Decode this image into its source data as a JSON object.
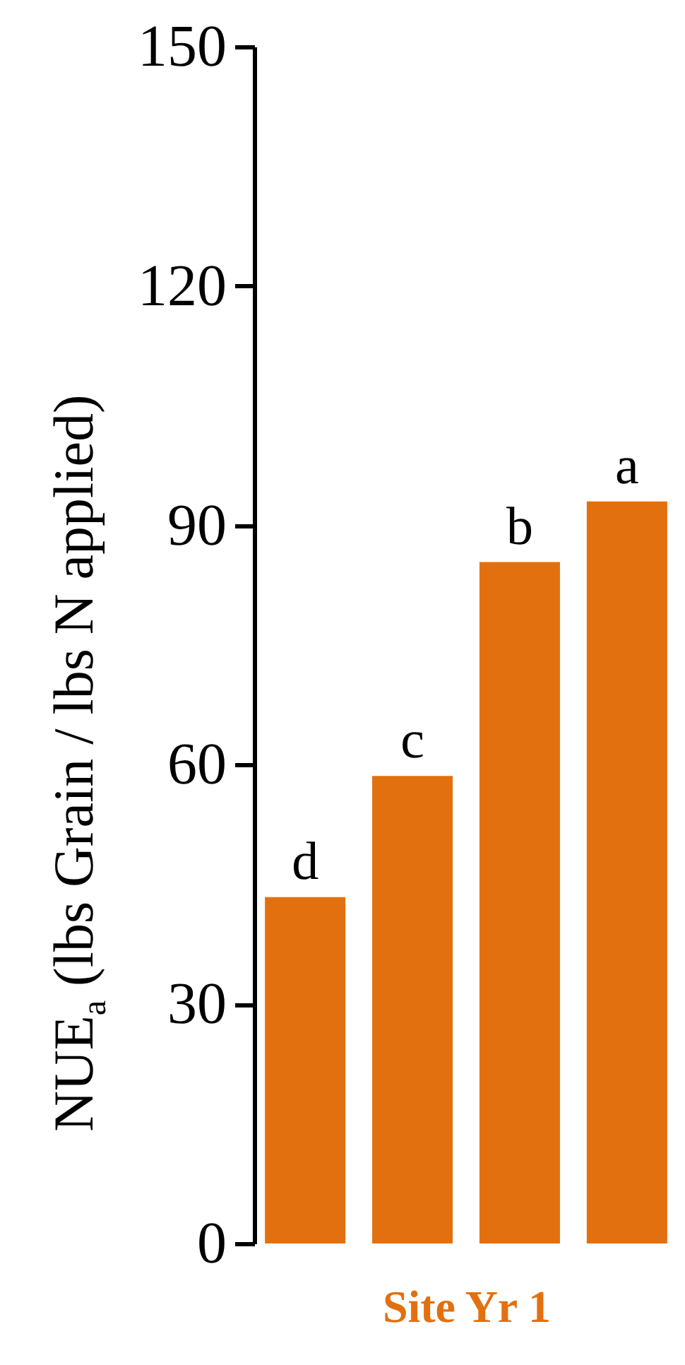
{
  "chart_data": {
    "type": "bar",
    "categories": [
      null,
      null,
      null,
      null
    ],
    "values": [
      43.4,
      58.6,
      85.4,
      93.0
    ],
    "color": "#e3700f",
    "xlabel": "Site Yr 1",
    "ylabel": "NUE$_{a}$ (lbs Grain / lbs N applied)",
    "ylim": [
      0,
      150
    ],
    "yticks": [
      0,
      30,
      60,
      90,
      120,
      150
    ],
    "tick_labels": "y",
    "grid": false,
    "annotations": [
      {
        "text": "d",
        "y": 43.4
      },
      {
        "text": "c",
        "y": 58.6
      },
      {
        "text": "b",
        "y": 85.4
      },
      {
        "text": "a",
        "y": 93.0
      }
    ]
  }
}
